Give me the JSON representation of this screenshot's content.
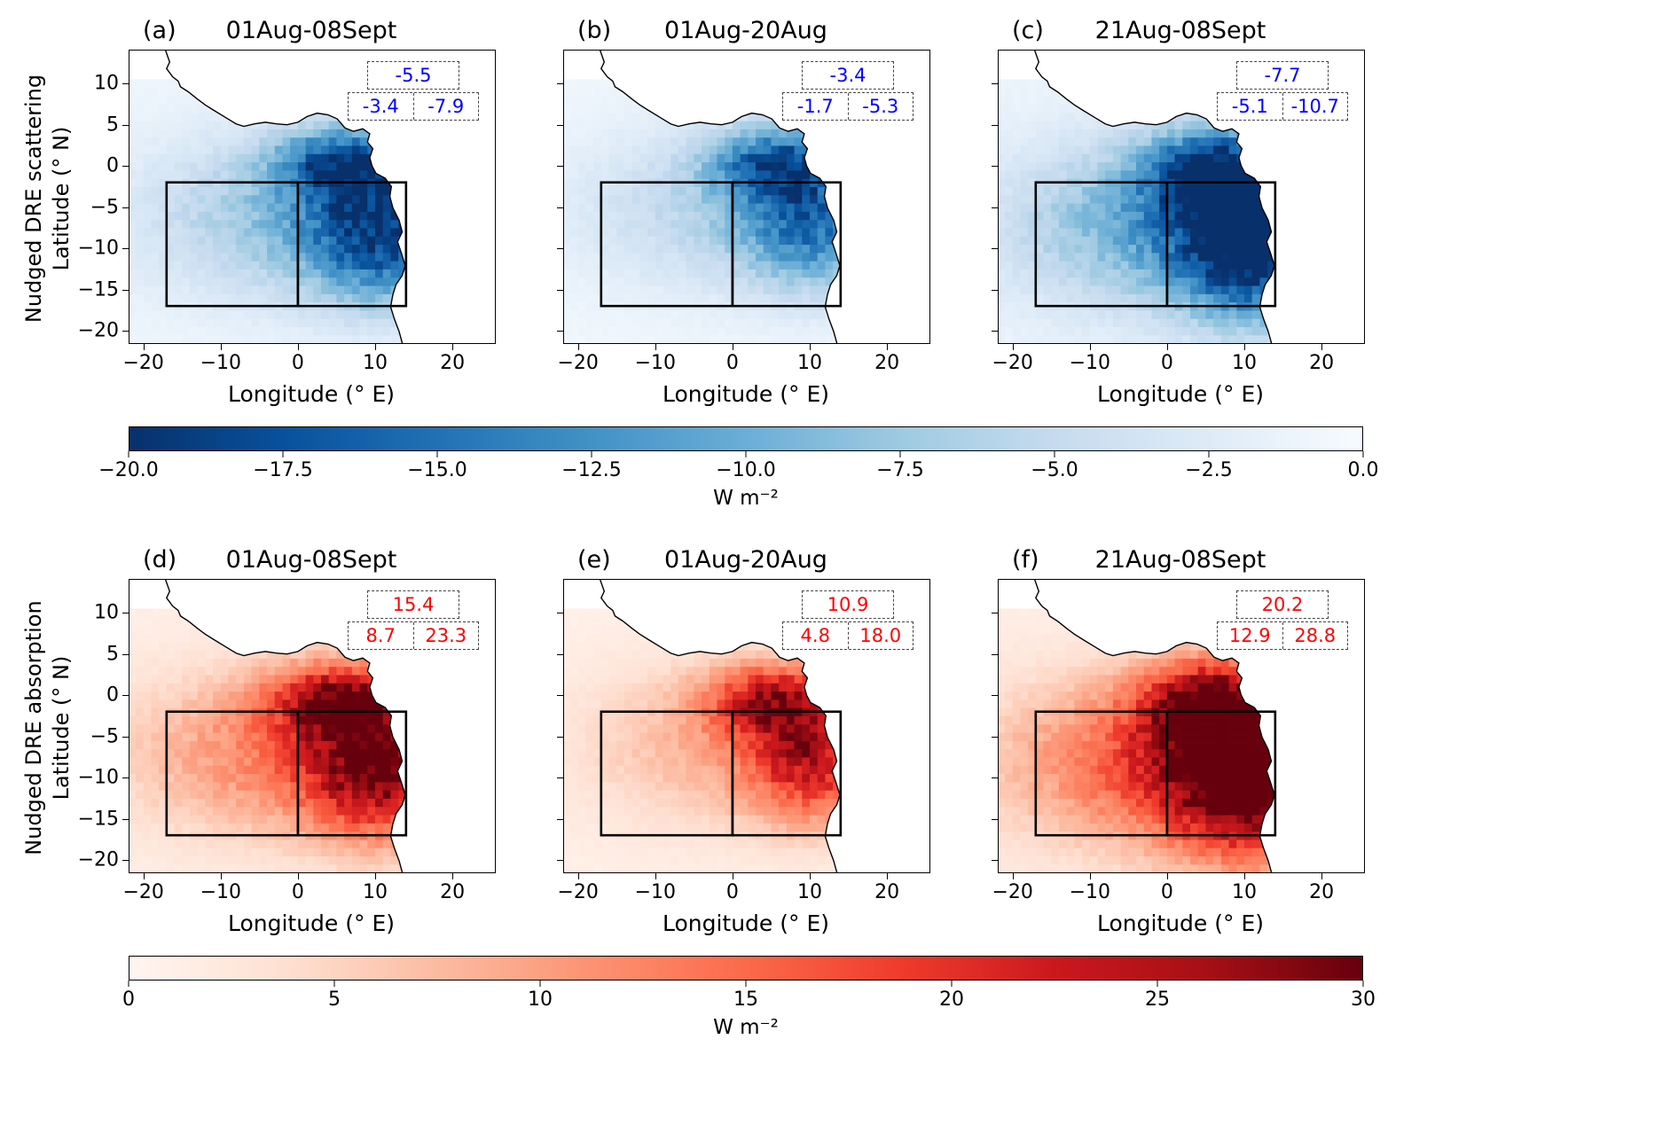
{
  "chart_data": {
    "type": "heatmap",
    "x_axis": {
      "label": "Longitude (° E)",
      "ticks": [
        -20,
        -10,
        0,
        10,
        20
      ],
      "range": [
        -21.8,
        25.5
      ]
    },
    "y_axis": {
      "label": "Latitude (° N)",
      "ticks": [
        10,
        5,
        0,
        -5,
        -10,
        -15,
        -20
      ],
      "range": [
        -21.5,
        14
      ]
    },
    "region_boxes": {
      "lon_min": -17,
      "lon_split": 0,
      "lon_max": 14,
      "lat_min": -17,
      "lat_max": -2
    },
    "coastline": [
      [
        -17.2,
        14.2
      ],
      [
        -16.6,
        12.6
      ],
      [
        -17.0,
        11.8
      ],
      [
        -16.2,
        10.8
      ],
      [
        -15.5,
        10.3
      ],
      [
        -15.2,
        9.6
      ],
      [
        -14.2,
        9.0
      ],
      [
        -13.0,
        8.1
      ],
      [
        -12.0,
        7.4
      ],
      [
        -10.8,
        6.7
      ],
      [
        -9.4,
        5.9
      ],
      [
        -8.0,
        5.1
      ],
      [
        -7.0,
        4.8
      ],
      [
        -5.6,
        5.1
      ],
      [
        -4.2,
        5.3
      ],
      [
        -2.8,
        5.1
      ],
      [
        -1.4,
        5.0
      ],
      [
        0.0,
        5.3
      ],
      [
        1.2,
        6.0
      ],
      [
        2.5,
        6.4
      ],
      [
        3.9,
        6.2
      ],
      [
        5.1,
        5.7
      ],
      [
        6.1,
        4.6
      ],
      [
        7.2,
        4.2
      ],
      [
        8.4,
        4.5
      ],
      [
        9.3,
        3.9
      ],
      [
        9.0,
        2.9
      ],
      [
        9.7,
        2.1
      ],
      [
        9.3,
        1.0
      ],
      [
        9.6,
        0.0
      ],
      [
        10.1,
        -0.9
      ],
      [
        11.3,
        -1.5
      ],
      [
        12.1,
        -2.5
      ],
      [
        11.9,
        -3.7
      ],
      [
        12.3,
        -5.1
      ],
      [
        13.1,
        -6.6
      ],
      [
        13.5,
        -8.0
      ],
      [
        12.9,
        -9.2
      ],
      [
        13.4,
        -10.6
      ],
      [
        13.9,
        -12.1
      ],
      [
        13.5,
        -13.3
      ],
      [
        12.7,
        -14.4
      ],
      [
        12.3,
        -15.6
      ],
      [
        12.0,
        -17.1
      ],
      [
        12.5,
        -18.6
      ],
      [
        13.1,
        -20.1
      ],
      [
        13.6,
        -21.8
      ]
    ],
    "rows": [
      {
        "quantity": "Nudged DRE scattering",
        "ylabel_line1": "Nudged DRE scattering",
        "ylabel_line2": "Latitude (° N)",
        "annotation_color": "#0000ff",
        "colormap_stops": [
          "#f7fbff",
          "#deebf7",
          "#c6dbef",
          "#9ecae1",
          "#6baed6",
          "#4292c6",
          "#2171b5",
          "#08519c",
          "#08306b"
        ],
        "colorbar": {
          "min": -20,
          "max": 0,
          "tick_labels": [
            "−20.0",
            "−17.5",
            "−15.0",
            "−12.5",
            "−10.0",
            "−7.5",
            "−5.0",
            "−2.5",
            "0.0"
          ],
          "label": "W m⁻²"
        },
        "panels": [
          {
            "letter": "(a)",
            "title": "01Aug-08Sept",
            "stats": {
              "all": "-5.5",
              "west": "-3.4",
              "east": "-7.9"
            },
            "field": {
              "amp": 15,
              "base": 0.05,
              "blobs": [
                {
                  "x": 11,
                  "y": -8,
                  "sx": 7,
                  "sy": 6,
                  "w": 1.0
                },
                {
                  "x": 6,
                  "y": 0.5,
                  "sx": 6,
                  "sy": 3,
                  "w": 0.85
                },
                {
                  "x": -2,
                  "y": -6,
                  "sx": 13,
                  "sy": 7,
                  "w": 0.45
                }
              ]
            }
          },
          {
            "letter": "(b)",
            "title": "01Aug-20Aug",
            "stats": {
              "all": "-3.4",
              "west": "-1.7",
              "east": "-5.3"
            },
            "field": {
              "amp": 12.5,
              "base": 0.05,
              "blobs": [
                {
                  "x": 10.5,
                  "y": -7,
                  "sx": 6.5,
                  "sy": 5.5,
                  "w": 0.95
                },
                {
                  "x": 6,
                  "y": 0.5,
                  "sx": 6,
                  "sy": 3,
                  "w": 1.0
                },
                {
                  "x": -2,
                  "y": -5,
                  "sx": 13,
                  "sy": 7,
                  "w": 0.4
                }
              ]
            }
          },
          {
            "letter": "(c)",
            "title": "21Aug-08Sept",
            "stats": {
              "all": "-7.7",
              "west": "-5.1",
              "east": "-10.7"
            },
            "field": {
              "amp": 20,
              "base": 0.05,
              "blobs": [
                {
                  "x": 11.5,
                  "y": -9,
                  "sx": 7,
                  "sy": 6.5,
                  "w": 1.0
                },
                {
                  "x": 6,
                  "y": -0.5,
                  "sx": 6,
                  "sy": 3.5,
                  "w": 0.7
                },
                {
                  "x": -2,
                  "y": -7,
                  "sx": 13,
                  "sy": 7,
                  "w": 0.45
                }
              ]
            }
          }
        ]
      },
      {
        "quantity": "Nudged DRE absorption",
        "ylabel_line1": "Nudged DRE absorption",
        "ylabel_line2": "Latitude (° N)",
        "annotation_color": "#ff0000",
        "colormap_stops": [
          "#fff5f0",
          "#fee0d2",
          "#fcbba1",
          "#fc9272",
          "#fb6a4a",
          "#ef3b2c",
          "#cb181d",
          "#a50f15",
          "#67000d"
        ],
        "colorbar": {
          "min": 0,
          "max": 30,
          "tick_labels": [
            "0",
            "5",
            "10",
            "15",
            "20",
            "25",
            "30"
          ],
          "label": "W m⁻²"
        },
        "panels": [
          {
            "letter": "(d)",
            "title": "01Aug-08Sept",
            "stats": {
              "all": "15.4",
              "west": "8.7",
              "east": "23.3"
            },
            "field": {
              "amp": 25,
              "base": 0.04,
              "blobs": [
                {
                  "x": 10.5,
                  "y": -8.5,
                  "sx": 6.5,
                  "sy": 6,
                  "w": 1.0
                },
                {
                  "x": 5,
                  "y": -0.5,
                  "sx": 6,
                  "sy": 3,
                  "w": 0.8
                },
                {
                  "x": -3,
                  "y": -7,
                  "sx": 13,
                  "sy": 7,
                  "w": 0.45
                }
              ]
            }
          },
          {
            "letter": "(e)",
            "title": "01Aug-20Aug",
            "stats": {
              "all": "10.9",
              "west": "4.8",
              "east": "18.0"
            },
            "field": {
              "amp": 20,
              "base": 0.04,
              "blobs": [
                {
                  "x": 10.5,
                  "y": -7.5,
                  "sx": 6,
                  "sy": 5.5,
                  "w": 1.0
                },
                {
                  "x": 5,
                  "y": -0.5,
                  "sx": 6,
                  "sy": 3,
                  "w": 0.9
                },
                {
                  "x": -3,
                  "y": -6,
                  "sx": 12,
                  "sy": 7,
                  "w": 0.35
                }
              ]
            }
          },
          {
            "letter": "(f)",
            "title": "21Aug-08Sept",
            "stats": {
              "all": "20.2",
              "west": "12.9",
              "east": "28.8"
            },
            "field": {
              "amp": 31,
              "base": 0.04,
              "blobs": [
                {
                  "x": 10.5,
                  "y": -9.5,
                  "sx": 7.5,
                  "sy": 7,
                  "w": 1.0
                },
                {
                  "x": 5,
                  "y": -1,
                  "sx": 6,
                  "sy": 3.5,
                  "w": 0.65
                },
                {
                  "x": -3,
                  "y": -8,
                  "sx": 13,
                  "sy": 7,
                  "w": 0.45
                }
              ]
            }
          }
        ]
      }
    ]
  }
}
